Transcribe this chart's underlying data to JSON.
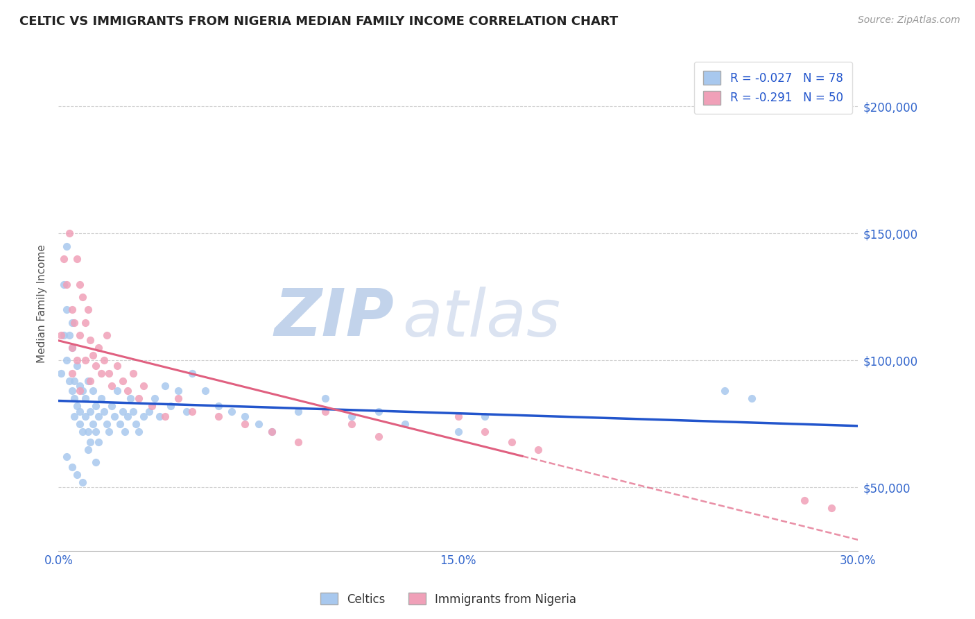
{
  "title": "CELTIC VS IMMIGRANTS FROM NIGERIA MEDIAN FAMILY INCOME CORRELATION CHART",
  "source_text": "Source: ZipAtlas.com",
  "ylabel": "Median Family Income",
  "xlim": [
    0.0,
    0.3
  ],
  "ylim": [
    25000,
    220000
  ],
  "xticks": [
    0.0,
    0.03,
    0.06,
    0.09,
    0.12,
    0.15,
    0.18,
    0.21,
    0.24,
    0.27,
    0.3
  ],
  "xticklabel_show": [
    0.0,
    0.15,
    0.3
  ],
  "yticks": [
    50000,
    100000,
    150000,
    200000
  ],
  "yticklabels": [
    "$50,000",
    "$100,000",
    "$150,000",
    "$200,000"
  ],
  "grid_color": "#c8c8c8",
  "background_color": "#ffffff",
  "celtics_color": "#a8c8ee",
  "nigeria_color": "#f0a0b8",
  "celtics_line_color": "#2255cc",
  "nigeria_line_color": "#e06080",
  "legend_text1": "R = -0.027   N = 78",
  "legend_text2": "R = -0.291   N = 50",
  "watermark_zip": "ZIP",
  "watermark_atlas": "atlas",
  "watermark_color_zip": "#c8d8f0",
  "watermark_color_atlas": "#d0d8e8",
  "celtics_x": [
    0.001,
    0.002,
    0.002,
    0.003,
    0.003,
    0.003,
    0.004,
    0.004,
    0.005,
    0.005,
    0.005,
    0.006,
    0.006,
    0.006,
    0.007,
    0.007,
    0.008,
    0.008,
    0.008,
    0.009,
    0.009,
    0.01,
    0.01,
    0.011,
    0.011,
    0.012,
    0.012,
    0.013,
    0.013,
    0.014,
    0.014,
    0.015,
    0.015,
    0.016,
    0.017,
    0.018,
    0.019,
    0.02,
    0.021,
    0.022,
    0.023,
    0.024,
    0.025,
    0.026,
    0.027,
    0.028,
    0.029,
    0.03,
    0.032,
    0.034,
    0.036,
    0.038,
    0.04,
    0.042,
    0.045,
    0.048,
    0.05,
    0.055,
    0.06,
    0.065,
    0.07,
    0.075,
    0.08,
    0.09,
    0.1,
    0.11,
    0.12,
    0.13,
    0.15,
    0.16,
    0.003,
    0.005,
    0.007,
    0.009,
    0.011,
    0.014,
    0.25,
    0.26
  ],
  "celtics_y": [
    95000,
    130000,
    110000,
    145000,
    120000,
    100000,
    110000,
    92000,
    105000,
    88000,
    115000,
    92000,
    85000,
    78000,
    98000,
    82000,
    90000,
    80000,
    75000,
    88000,
    72000,
    85000,
    78000,
    92000,
    72000,
    80000,
    68000,
    75000,
    88000,
    82000,
    72000,
    78000,
    68000,
    85000,
    80000,
    75000,
    72000,
    82000,
    78000,
    88000,
    75000,
    80000,
    72000,
    78000,
    85000,
    80000,
    75000,
    72000,
    78000,
    80000,
    85000,
    78000,
    90000,
    82000,
    88000,
    80000,
    95000,
    88000,
    82000,
    80000,
    78000,
    75000,
    72000,
    80000,
    85000,
    78000,
    80000,
    75000,
    72000,
    78000,
    62000,
    58000,
    55000,
    52000,
    65000,
    60000,
    88000,
    85000
  ],
  "nigeria_x": [
    0.001,
    0.002,
    0.003,
    0.004,
    0.005,
    0.005,
    0.006,
    0.007,
    0.007,
    0.008,
    0.008,
    0.009,
    0.01,
    0.01,
    0.011,
    0.012,
    0.013,
    0.014,
    0.015,
    0.016,
    0.017,
    0.018,
    0.019,
    0.02,
    0.022,
    0.024,
    0.026,
    0.028,
    0.03,
    0.032,
    0.035,
    0.04,
    0.045,
    0.05,
    0.06,
    0.07,
    0.08,
    0.09,
    0.1,
    0.11,
    0.12,
    0.15,
    0.16,
    0.17,
    0.18,
    0.005,
    0.008,
    0.012,
    0.28,
    0.29
  ],
  "nigeria_y": [
    110000,
    140000,
    130000,
    150000,
    120000,
    105000,
    115000,
    140000,
    100000,
    130000,
    110000,
    125000,
    115000,
    100000,
    120000,
    108000,
    102000,
    98000,
    105000,
    95000,
    100000,
    110000,
    95000,
    90000,
    98000,
    92000,
    88000,
    95000,
    85000,
    90000,
    82000,
    78000,
    85000,
    80000,
    78000,
    75000,
    72000,
    68000,
    80000,
    75000,
    70000,
    78000,
    72000,
    68000,
    65000,
    95000,
    88000,
    92000,
    45000,
    42000
  ]
}
